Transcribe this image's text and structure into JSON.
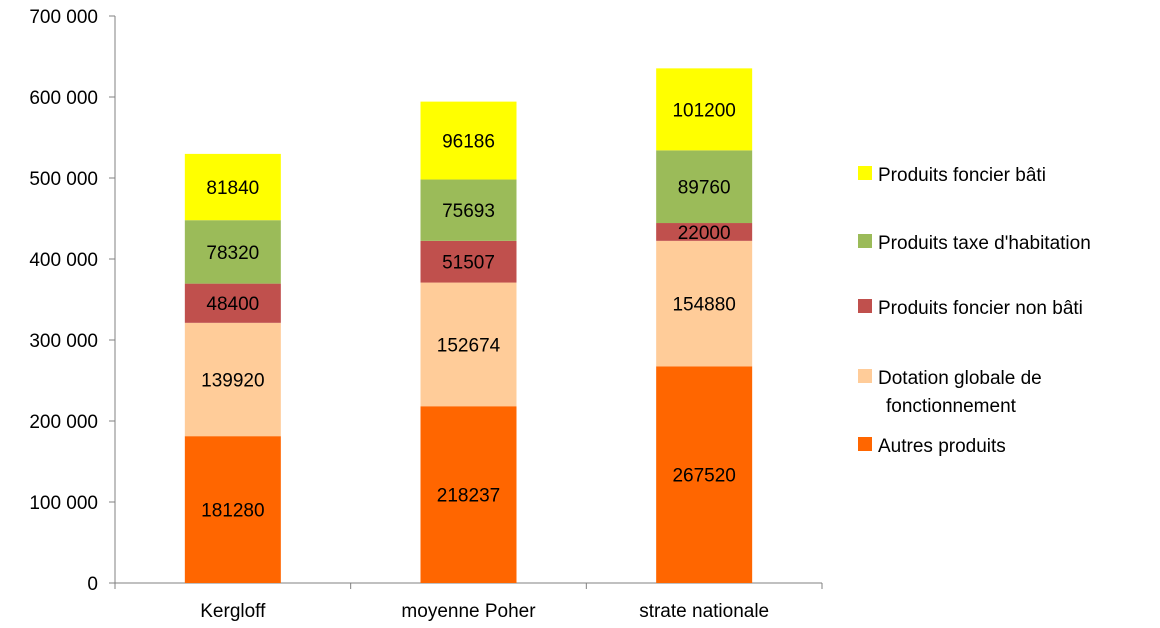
{
  "chart_data": {
    "type": "bar",
    "stacked": true,
    "categories": [
      "Kergloff",
      "moyenne Poher",
      "strate nationale"
    ],
    "series": [
      {
        "name": "Autres produits",
        "color": "#FF6600",
        "values": [
          181280,
          218237,
          267520
        ]
      },
      {
        "name": "Dotation globale de fonctionnement",
        "legend_lines": [
          "Dotation globale de",
          "fonctionnement"
        ],
        "color": "#FFCC99",
        "values": [
          139920,
          152674,
          154880
        ]
      },
      {
        "name": "Produits foncier non bâti",
        "color": "#C0504D",
        "values": [
          48400,
          51507,
          22000
        ]
      },
      {
        "name": "Produits taxe d'habitation",
        "color": "#9BBB59",
        "values": [
          78320,
          75693,
          89760
        ]
      },
      {
        "name": "Produits foncier bâti",
        "color": "#FFFF00",
        "values": [
          81840,
          96186,
          101200
        ]
      }
    ],
    "y_ticks": [
      {
        "value": 0,
        "label": "0"
      },
      {
        "value": 100000,
        "label": "100 000"
      },
      {
        "value": 200000,
        "label": "200 000"
      },
      {
        "value": 300000,
        "label": "300 000"
      },
      {
        "value": 400000,
        "label": "400 000"
      },
      {
        "value": 500000,
        "label": "500 000"
      },
      {
        "value": 600000,
        "label": "600 000"
      },
      {
        "value": 700000,
        "label": "700 000"
      }
    ],
    "ylim": [
      0,
      700000
    ],
    "grid": false,
    "legend_position": "right",
    "legend_order": [
      "Produits foncier bâti",
      "Produits taxe d'habitation",
      "Produits foncier non bâti",
      "Dotation globale de fonctionnement",
      "Autres produits"
    ],
    "title": "",
    "xlabel": "",
    "ylabel": ""
  }
}
